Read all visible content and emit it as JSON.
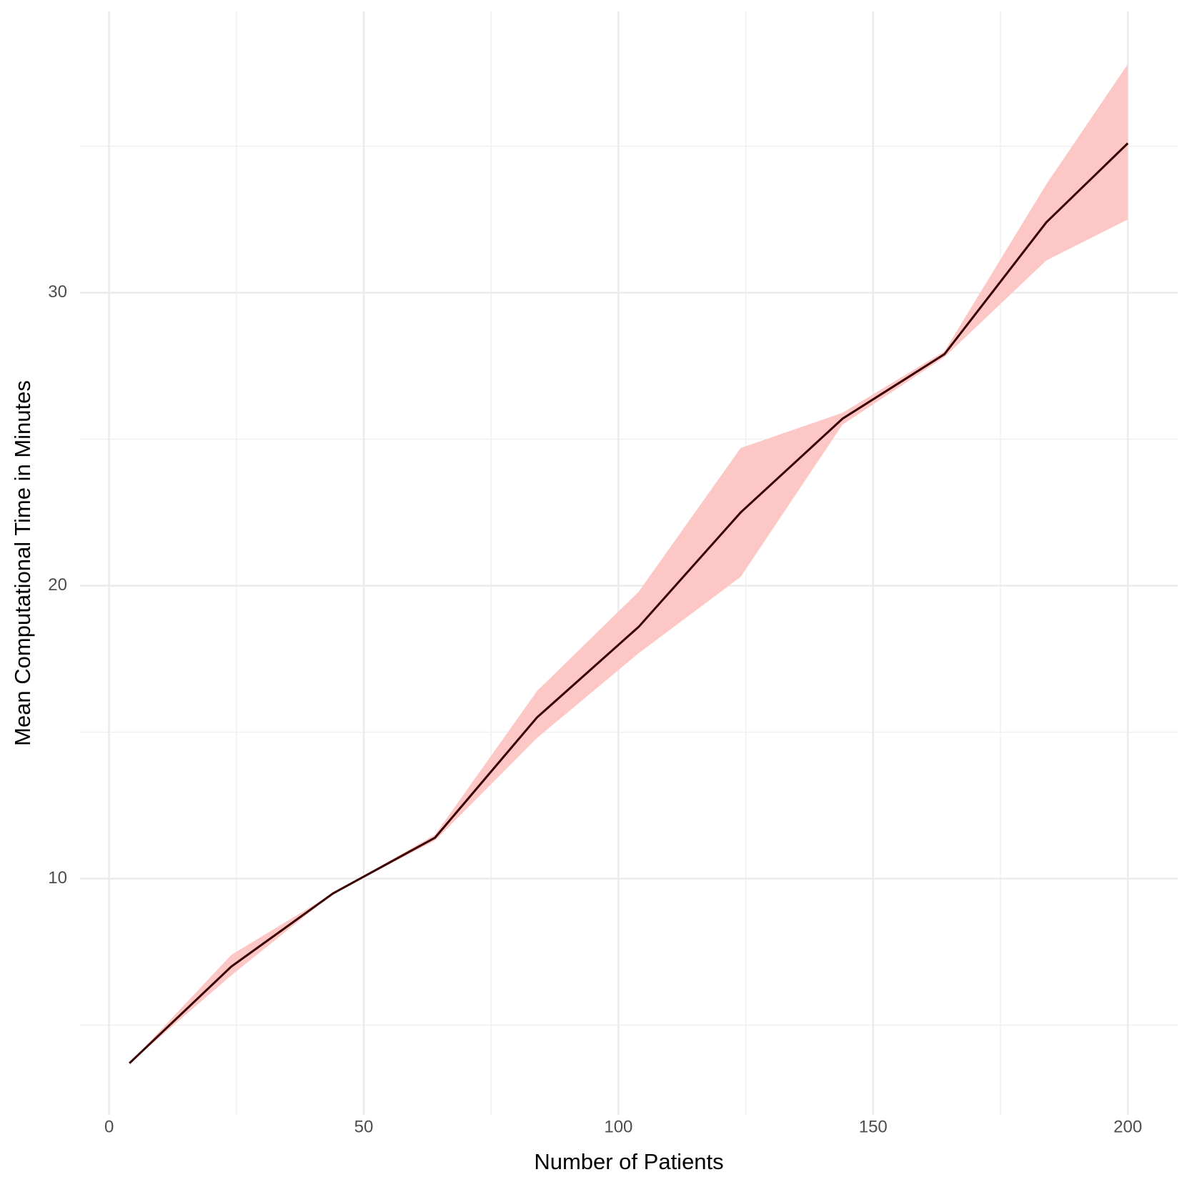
{
  "chart_data": {
    "type": "line",
    "x_label": "Number of Patients",
    "y_label": "Mean Computational Time in Minutes",
    "x": [
      4,
      24,
      44,
      64,
      84,
      104,
      124,
      144,
      164,
      184,
      200
    ],
    "series": [
      {
        "color": "#3a0000",
        "values": [
          3.7,
          7.0,
          9.5,
          11.4,
          15.5,
          18.6,
          22.5,
          25.7,
          27.9,
          32.4,
          35.1
        ]
      }
    ],
    "band": {
      "color": "#fcc7c5",
      "lower": [
        3.7,
        6.7,
        9.5,
        11.3,
        14.8,
        17.7,
        20.3,
        25.5,
        27.8,
        31.1,
        32.5
      ],
      "upper": [
        3.7,
        7.4,
        9.5,
        11.5,
        16.4,
        19.8,
        24.7,
        25.9,
        28.0,
        33.7,
        37.8
      ]
    },
    "xlim": [
      -5.7,
      209.8
    ],
    "xticks": [
      0,
      50,
      100,
      150,
      200
    ],
    "ylim": [
      1.94,
      39.6
    ],
    "yticks": [
      10,
      20,
      30
    ],
    "grid": true
  }
}
